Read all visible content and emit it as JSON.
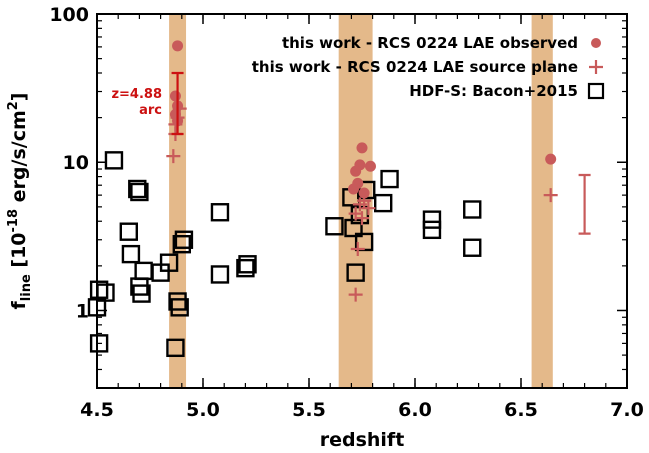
{
  "chart_data": {
    "type": "scatter",
    "xlabel": "redshift",
    "ylabel": {
      "main": "f",
      "sub": "line",
      "rest": " [10",
      "sup": "-18",
      "rest2": " erg/s/cm",
      "sup2": "2",
      "close": "]"
    },
    "x_scale": "linear",
    "y_scale": "log",
    "xlim": [
      4.5,
      7.0
    ],
    "ylim": [
      0.3,
      100
    ],
    "x_ticks": [
      4.5,
      5.0,
      5.5,
      6.0,
      6.5,
      7.0
    ],
    "x_tick_labels": [
      "4.5",
      "5.0",
      "5.5",
      "6.0",
      "6.5",
      "7.0"
    ],
    "y_ticks": [
      1,
      10,
      100
    ],
    "y_tick_labels": [
      "1",
      "10",
      "100"
    ],
    "colors": {
      "red": "#c85a5a",
      "dark_red": "#cc1111",
      "band": "#e4b98a"
    },
    "bands": [
      {
        "x0": 4.84,
        "x1": 4.92
      },
      {
        "x0": 5.64,
        "x1": 5.8
      },
      {
        "x0": 6.55,
        "x1": 6.65
      }
    ],
    "legend": {
      "placement": "top-right",
      "entries": [
        {
          "label": "this work - RCS 0224 LAE observed",
          "marker": "circle"
        },
        {
          "label": "this work - RCS 0224 LAE source plane",
          "marker": "plus"
        },
        {
          "label": "HDF-S: Bacon+2015",
          "marker": "square"
        }
      ]
    },
    "annotation": {
      "line1": "z=4.88",
      "line2": "arc"
    },
    "series": [
      {
        "marker": "circle",
        "points": [
          [
            4.88,
            61
          ],
          [
            4.87,
            28
          ],
          [
            4.88,
            24
          ],
          [
            4.87,
            21
          ],
          [
            4.88,
            19
          ],
          [
            5.75,
            12.5
          ],
          [
            5.74,
            9.6
          ],
          [
            5.79,
            9.4
          ],
          [
            5.72,
            8.7
          ],
          [
            5.73,
            7.2
          ],
          [
            5.71,
            6.6
          ],
          [
            5.76,
            6.2
          ],
          [
            6.64,
            10.5
          ]
        ]
      },
      {
        "marker": "plus",
        "points": [
          [
            4.86,
            11
          ],
          [
            4.87,
            15.5
          ],
          [
            4.87,
            18
          ],
          [
            4.88,
            20
          ],
          [
            4.89,
            23
          ],
          [
            5.72,
            1.28
          ],
          [
            5.73,
            2.6
          ],
          [
            5.75,
            4.2
          ],
          [
            5.72,
            4.5
          ],
          [
            5.78,
            4.9
          ],
          [
            5.74,
            5.2
          ],
          [
            5.76,
            5.5
          ],
          [
            6.64,
            6.0
          ]
        ]
      },
      {
        "marker": "square",
        "points": [
          [
            4.5,
            1.05
          ],
          [
            4.51,
            1.38
          ],
          [
            4.51,
            0.6
          ],
          [
            4.54,
            1.32
          ],
          [
            4.58,
            10.3
          ],
          [
            4.65,
            3.4
          ],
          [
            4.66,
            2.4
          ],
          [
            4.69,
            6.6
          ],
          [
            4.7,
            6.3
          ],
          [
            4.7,
            1.45
          ],
          [
            4.71,
            1.3
          ],
          [
            4.72,
            1.85
          ],
          [
            4.8,
            1.8
          ],
          [
            4.84,
            2.1
          ],
          [
            4.87,
            0.56
          ],
          [
            4.88,
            1.15
          ],
          [
            4.89,
            1.05
          ],
          [
            4.9,
            2.8
          ],
          [
            4.91,
            3.0
          ],
          [
            5.08,
            4.6
          ],
          [
            5.08,
            1.75
          ],
          [
            5.2,
            1.93
          ],
          [
            5.21,
            2.05
          ],
          [
            5.62,
            3.7
          ],
          [
            5.7,
            5.8
          ],
          [
            5.71,
            3.6
          ],
          [
            5.72,
            1.8
          ],
          [
            5.74,
            4.4
          ],
          [
            5.76,
            2.9
          ],
          [
            5.77,
            6.5
          ],
          [
            5.85,
            5.3
          ],
          [
            5.88,
            7.7
          ],
          [
            6.08,
            4.1
          ],
          [
            6.08,
            3.5
          ],
          [
            6.27,
            4.8
          ],
          [
            6.27,
            2.65
          ]
        ]
      }
    ],
    "error_bars": [
      {
        "x": 4.88,
        "y": 25,
        "ylow": 15.5,
        "yhigh": 40,
        "color": "dark_red"
      },
      {
        "x": 6.8,
        "y": 5.2,
        "ylow": 3.3,
        "yhigh": 8.2,
        "color": "red"
      }
    ]
  }
}
